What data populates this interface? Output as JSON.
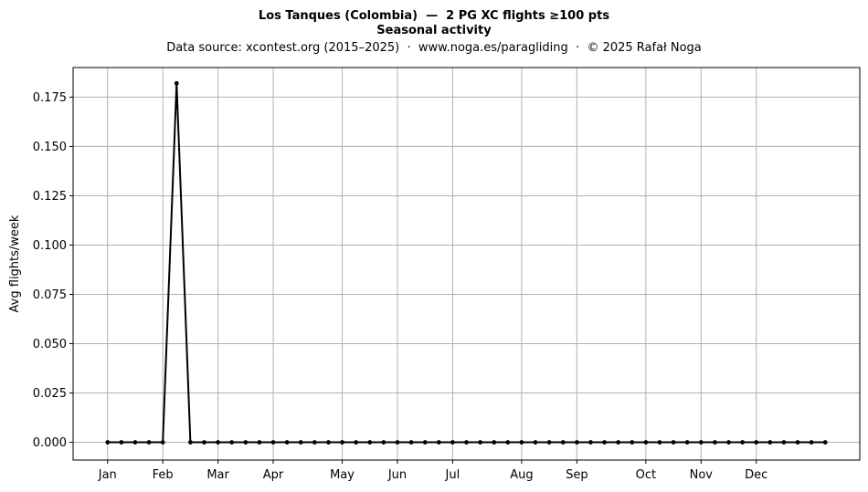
{
  "chart_data": {
    "type": "line",
    "title": "Los Tanques (Colombia)  —  2 PG XC flights ≥100 pts",
    "subtitle": "Seasonal activity",
    "source": "Data source: xcontest.org (2015–2025)  ·  www.noga.es/paragliding  ·  © 2025 Rafał Noga",
    "xlabel": "",
    "ylabel": "Avg flights/week",
    "x_ticks": [
      "Jan",
      "Feb",
      "Mar",
      "Apr",
      "May",
      "Jun",
      "Jul",
      "Aug",
      "Sep",
      "Oct",
      "Nov",
      "Dec"
    ],
    "x_tick_weeks": [
      1,
      5,
      9,
      13,
      18,
      22,
      26,
      31,
      35,
      40,
      44,
      48
    ],
    "y_ticks": [
      "0.000",
      "0.025",
      "0.050",
      "0.075",
      "0.100",
      "0.125",
      "0.150",
      "0.175"
    ],
    "ylim": [
      -0.009,
      0.19
    ],
    "xlim": [
      -1.5,
      55.5
    ],
    "grid": true,
    "line_color": "#000000",
    "grid_color": "#b0b0b0",
    "series": [
      {
        "x": [
          1,
          2,
          3,
          4,
          5,
          6,
          7,
          8,
          9,
          10,
          11,
          12,
          13,
          14,
          15,
          16,
          17,
          18,
          19,
          20,
          21,
          22,
          23,
          24,
          25,
          26,
          27,
          28,
          29,
          30,
          31,
          32,
          33,
          34,
          35,
          36,
          37,
          38,
          39,
          40,
          41,
          42,
          43,
          44,
          45,
          46,
          47,
          48,
          49,
          50,
          51,
          52,
          53
        ],
        "values": [
          0,
          0,
          0,
          0,
          0,
          0.182,
          0,
          0,
          0,
          0,
          0,
          0,
          0,
          0,
          0,
          0,
          0,
          0,
          0,
          0,
          0,
          0,
          0,
          0,
          0,
          0,
          0,
          0,
          0,
          0,
          0,
          0,
          0,
          0,
          0,
          0,
          0,
          0,
          0,
          0,
          0,
          0,
          0,
          0,
          0,
          0,
          0,
          0,
          0,
          0,
          0,
          0,
          0
        ]
      }
    ]
  }
}
